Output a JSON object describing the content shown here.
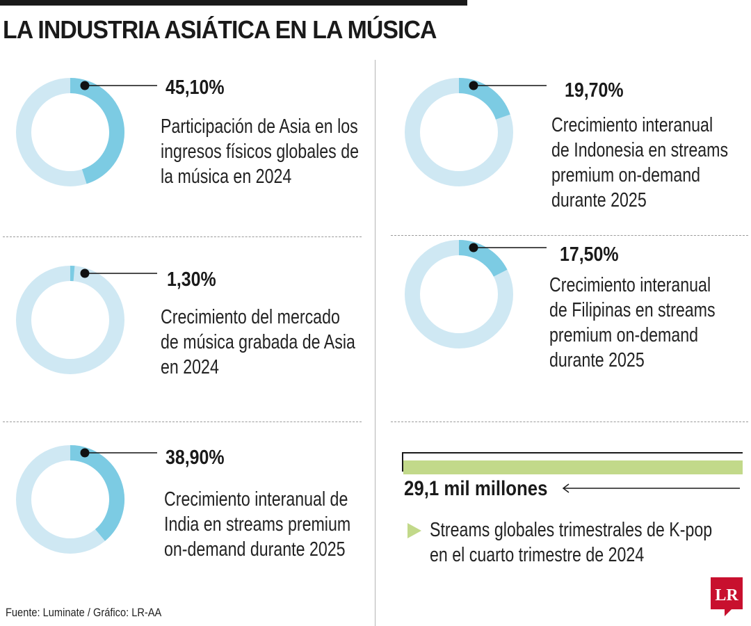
{
  "title": "LA INDUSTRIA ASIÁTICA EN LA MÚSICA",
  "colors": {
    "ring_track": "#cfe8f3",
    "ring_value": "#7ccbe3",
    "dot": "#111111",
    "bar": "#c2d98a",
    "logo_bg": "#c8102e"
  },
  "chart_data": {
    "type": "pie",
    "subtype": "donut-stats",
    "title": "LA INDUSTRIA ASIÁTICA EN LA MÚSICA",
    "items": [
      {
        "value": 45.1,
        "label": "45,10%",
        "description": "Participación de Asia en los ingresos físicos globales de la música en 2024"
      },
      {
        "value": 19.7,
        "label": "19,70%",
        "description": "Crecimiento interanual de Indonesia en streams premium on-demand durante 2025"
      },
      {
        "value": 1.3,
        "label": "1,30%",
        "description": "Crecimiento del mercado de música grabada de Asia en 2024"
      },
      {
        "value": 17.5,
        "label": "17,50%",
        "description": "Crecimiento interanual de Filipinas en streams premium on-demand durante 2025"
      },
      {
        "value": 38.9,
        "label": "38,90%",
        "description": "Crecimiento interanual de India en streams premium on-demand durante 2025"
      }
    ],
    "kpop": {
      "value_label": "29,1 mil millones",
      "value": 29.1,
      "unit": "mil millones",
      "description": "Streams globales trimestrales de K-pop en el cuarto trimestre de 2024"
    }
  },
  "source": "Fuente: Luminate / Gráfico: LR-AA",
  "logo_text": "LR"
}
